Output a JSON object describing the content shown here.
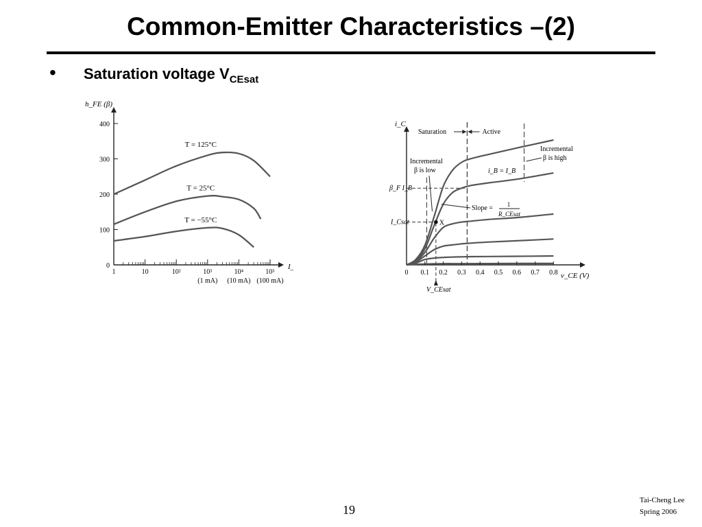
{
  "slide": {
    "title": "Common-Emitter Characteristics –(2)",
    "bullet_text": "Saturation voltage V",
    "bullet_subscript": "CEsat",
    "page_number": "19",
    "footer_author": "Tai-Cheng Lee",
    "footer_term": "Spring 2006"
  },
  "chart_data": [
    {
      "type": "line",
      "xlabel": "I_C (μA)",
      "ylabel": "h_FE (β)",
      "x_scale": "log",
      "xlim": [
        1,
        100000
      ],
      "ylim": [
        0,
        400
      ],
      "x_ticks": [
        1,
        10,
        100,
        1000,
        10000,
        100000
      ],
      "x_tick_labels": [
        "1",
        "10",
        "10²",
        "10³",
        "10⁴",
        "10⁵"
      ],
      "x_secondary_labels": [
        "(1 mA)",
        "(10 mA)",
        "(100 mA)"
      ],
      "y_ticks": [
        0,
        100,
        200,
        300,
        400
      ],
      "y_tick_labels": [
        "0",
        "100",
        "200",
        "300",
        "400"
      ],
      "series": [
        {
          "name": "T = 125°C",
          "x": [
            1,
            10,
            100,
            1000,
            3000,
            10000,
            30000,
            100000
          ],
          "y": [
            200,
            240,
            280,
            310,
            318,
            315,
            295,
            250
          ]
        },
        {
          "name": "T = 25°C",
          "x": [
            1,
            10,
            100,
            1000,
            3000,
            10000,
            30000,
            50000
          ],
          "y": [
            115,
            150,
            180,
            195,
            193,
            185,
            160,
            130
          ]
        },
        {
          "name": "T = −55°C",
          "x": [
            1,
            10,
            100,
            1000,
            3000,
            10000,
            30000
          ],
          "y": [
            68,
            80,
            95,
            105,
            103,
            85,
            50
          ]
        }
      ]
    },
    {
      "type": "line",
      "xlabel": "v_CE (V)",
      "ylabel": "i_C",
      "xlim": [
        0,
        0.9
      ],
      "x_ticks": [
        0,
        0.1,
        0.2,
        0.3,
        0.4,
        0.5,
        0.6,
        0.7,
        0.8
      ],
      "x_tick_labels": [
        "0",
        "0.1",
        "0.2",
        "0.3",
        "0.4",
        "0.5",
        "0.6",
        "0.7",
        "0.8"
      ],
      "region_labels": [
        "Saturation",
        "Active"
      ],
      "annotations": {
        "incremental_low": [
          "Incremental",
          "β is low"
        ],
        "incremental_high": [
          "Incremental",
          "β is high"
        ],
        "ib_label": "i_B = I_B",
        "bf_ib_label": "β_F I_B",
        "ic_sat_label": "I_Csat",
        "vce_sat_label": "V_CEsat",
        "slope_label": "Slope =",
        "slope_numerator": "1",
        "slope_denominator": "R_CEsat",
        "operating_point_label": "X",
        "vce_sat_value": 0.16
      },
      "series": [
        {
          "x": [
            0,
            0.05,
            0.1,
            0.15,
            0.2,
            0.25,
            0.3,
            0.35,
            0.45,
            0.6,
            0.8
          ],
          "y": [
            0,
            0.3,
            1.1,
            2.7,
            4.4,
            5.3,
            5.75,
            5.95,
            6.2,
            6.55,
            7.0
          ]
        },
        {
          "x": [
            0,
            0.05,
            0.1,
            0.15,
            0.2,
            0.25,
            0.3,
            0.35,
            0.45,
            0.6,
            0.8
          ],
          "y": [
            0,
            0.25,
            0.9,
            2.2,
            3.4,
            4.05,
            4.3,
            4.45,
            4.6,
            4.8,
            5.15
          ]
        },
        {
          "x": [
            0,
            0.05,
            0.1,
            0.15,
            0.2,
            0.25,
            0.3,
            0.35,
            0.45,
            0.6,
            0.8
          ],
          "y": [
            0,
            0.2,
            0.7,
            1.5,
            2.1,
            2.3,
            2.4,
            2.45,
            2.55,
            2.65,
            2.85
          ]
        },
        {
          "x": [
            0,
            0.05,
            0.1,
            0.15,
            0.2,
            0.25,
            0.3,
            0.35,
            0.45,
            0.6,
            0.8
          ],
          "y": [
            0,
            0.15,
            0.5,
            0.85,
            1.05,
            1.12,
            1.18,
            1.22,
            1.28,
            1.35,
            1.45
          ]
        },
        {
          "x": [
            0,
            0.05,
            0.1,
            0.15,
            0.2,
            0.25,
            0.3,
            0.35,
            0.45,
            0.6,
            0.8
          ],
          "y": [
            0,
            0.1,
            0.3,
            0.38,
            0.42,
            0.44,
            0.45,
            0.46,
            0.47,
            0.48,
            0.5
          ]
        },
        {
          "x": [
            0,
            0.05,
            0.1,
            0.15,
            0.2,
            0.3,
            0.45,
            0.6,
            0.8
          ],
          "y": [
            0,
            0.03,
            0.05,
            0.06,
            0.07,
            0.07,
            0.075,
            0.08,
            0.08
          ]
        }
      ]
    }
  ]
}
